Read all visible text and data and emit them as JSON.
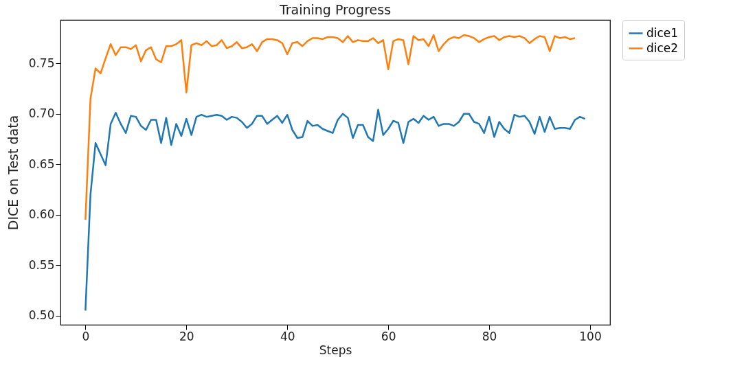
{
  "chart_data": {
    "type": "line",
    "title": "Training Progress",
    "xlabel": "Steps",
    "ylabel": "DICE on Test data",
    "x": [
      0,
      1,
      2,
      3,
      4,
      5,
      6,
      7,
      8,
      9,
      10,
      11,
      12,
      13,
      14,
      15,
      16,
      17,
      18,
      19,
      20,
      21,
      22,
      23,
      24,
      25,
      26,
      27,
      28,
      29,
      30,
      31,
      32,
      33,
      34,
      35,
      36,
      37,
      38,
      39,
      40,
      41,
      42,
      43,
      44,
      45,
      46,
      47,
      48,
      49,
      50,
      51,
      52,
      53,
      54,
      55,
      56,
      57,
      58,
      59,
      60,
      61,
      62,
      63,
      64,
      65,
      66,
      67,
      68,
      69,
      70,
      71,
      72,
      73,
      74,
      75,
      76,
      77,
      78,
      79,
      80,
      81,
      82,
      83,
      84,
      85,
      86,
      87,
      88,
      89,
      90,
      91,
      92,
      93,
      94,
      95,
      96,
      97,
      98,
      99
    ],
    "series": [
      {
        "name": "dice1",
        "color": "#1f77b4",
        "values": [
          0.505,
          0.62,
          0.671,
          0.66,
          0.649,
          0.69,
          0.701,
          0.69,
          0.681,
          0.698,
          0.697,
          0.688,
          0.684,
          0.694,
          0.694,
          0.671,
          0.696,
          0.669,
          0.69,
          0.678,
          0.695,
          0.679,
          0.697,
          0.699,
          0.697,
          0.698,
          0.699,
          0.698,
          0.694,
          0.697,
          0.696,
          0.692,
          0.686,
          0.69,
          0.698,
          0.698,
          0.69,
          0.694,
          0.698,
          0.691,
          0.699,
          0.684,
          0.676,
          0.677,
          0.693,
          0.688,
          0.689,
          0.685,
          0.683,
          0.681,
          0.694,
          0.7,
          0.696,
          0.676,
          0.689,
          0.689,
          0.677,
          0.673,
          0.704,
          0.679,
          0.685,
          0.693,
          0.691,
          0.671,
          0.692,
          0.695,
          0.691,
          0.698,
          0.694,
          0.697,
          0.688,
          0.69,
          0.69,
          0.688,
          0.692,
          0.7,
          0.7,
          0.692,
          0.69,
          0.681,
          0.697,
          0.677,
          0.692,
          0.685,
          0.681,
          0.699,
          0.697,
          0.698,
          0.692,
          0.68,
          0.697,
          0.682,
          0.697,
          0.685,
          0.686,
          0.686,
          0.685,
          0.694,
          0.697,
          0.695
        ]
      },
      {
        "name": "dice2",
        "color": "#ff7f0e",
        "values": [
          0.595,
          0.715,
          0.745,
          0.74,
          0.755,
          0.769,
          0.758,
          0.766,
          0.766,
          0.764,
          0.768,
          0.752,
          0.763,
          0.766,
          0.754,
          0.751,
          0.767,
          0.767,
          0.769,
          0.773,
          0.721,
          0.768,
          0.77,
          0.768,
          0.772,
          0.767,
          0.768,
          0.773,
          0.765,
          0.767,
          0.771,
          0.765,
          0.766,
          0.769,
          0.762,
          0.771,
          0.774,
          0.774,
          0.773,
          0.77,
          0.759,
          0.77,
          0.771,
          0.767,
          0.772,
          0.775,
          0.775,
          0.774,
          0.776,
          0.776,
          0.775,
          0.771,
          0.777,
          0.771,
          0.773,
          0.772,
          0.772,
          0.775,
          0.77,
          0.773,
          0.744,
          0.772,
          0.774,
          0.773,
          0.749,
          0.777,
          0.773,
          0.774,
          0.767,
          0.778,
          0.762,
          0.769,
          0.774,
          0.776,
          0.775,
          0.778,
          0.777,
          0.775,
          0.771,
          0.774,
          0.776,
          0.777,
          0.773,
          0.776,
          0.777,
          0.776,
          0.777,
          0.775,
          0.77,
          0.774,
          0.777,
          0.776,
          0.762,
          0.777,
          0.775,
          0.776,
          0.774,
          0.775,
          null,
          null
        ]
      }
    ],
    "xlim": [
      -4.95,
      103.95
    ],
    "xticks": [
      0,
      20,
      40,
      60,
      80,
      100
    ],
    "ylim": [
      0.491,
      0.793
    ],
    "yticks": [
      {
        "value": 0.5,
        "label": "0.50"
      },
      {
        "value": 0.55,
        "label": "0.55"
      },
      {
        "value": 0.6,
        "label": "0.60"
      },
      {
        "value": 0.65,
        "label": "0.65"
      },
      {
        "value": 0.7,
        "label": "0.70"
      },
      {
        "value": 0.75,
        "label": "0.75"
      }
    ],
    "legend": "top right"
  }
}
